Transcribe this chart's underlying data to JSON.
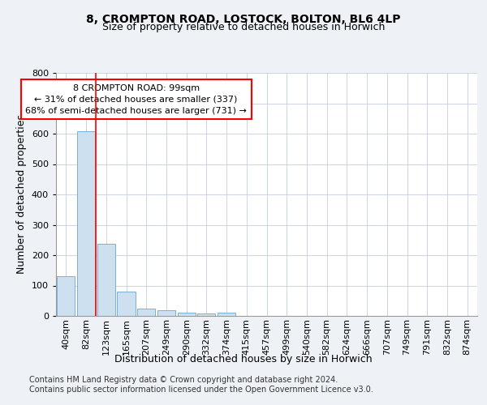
{
  "title_line1": "8, CROMPTON ROAD, LOSTOCK, BOLTON, BL6 4LP",
  "title_line2": "Size of property relative to detached houses in Horwich",
  "xlabel": "Distribution of detached houses by size in Horwich",
  "ylabel": "Number of detached properties",
  "categories": [
    "40sqm",
    "82sqm",
    "123sqm",
    "165sqm",
    "207sqm",
    "249sqm",
    "290sqm",
    "332sqm",
    "374sqm",
    "415sqm",
    "457sqm",
    "499sqm",
    "540sqm",
    "582sqm",
    "624sqm",
    "666sqm",
    "707sqm",
    "749sqm",
    "791sqm",
    "832sqm",
    "874sqm"
  ],
  "values": [
    130,
    607,
    237,
    80,
    25,
    20,
    10,
    7,
    10,
    0,
    0,
    0,
    0,
    0,
    0,
    0,
    0,
    0,
    0,
    0,
    0
  ],
  "bar_color": "#cce0f0",
  "bar_edge_color": "#7ab0d4",
  "property_line_x": 1.5,
  "annotation_text": "8 CROMPTON ROAD: 99sqm\n← 31% of detached houses are smaller (337)\n68% of semi-detached houses are larger (731) →",
  "annotation_box_color": "white",
  "annotation_box_edge_color": "red",
  "vline_color": "red",
  "ylim": [
    0,
    800
  ],
  "yticks": [
    0,
    100,
    200,
    300,
    400,
    500,
    600,
    700,
    800
  ],
  "footer_line1": "Contains HM Land Registry data © Crown copyright and database right 2024.",
  "footer_line2": "Contains public sector information licensed under the Open Government Licence v3.0.",
  "background_color": "#eef2f7",
  "plot_background": "white",
  "grid_color": "#c5cfe0",
  "title_fontsize": 10,
  "subtitle_fontsize": 9,
  "axis_label_fontsize": 9,
  "tick_fontsize": 8,
  "annotation_fontsize": 8,
  "footer_fontsize": 7
}
